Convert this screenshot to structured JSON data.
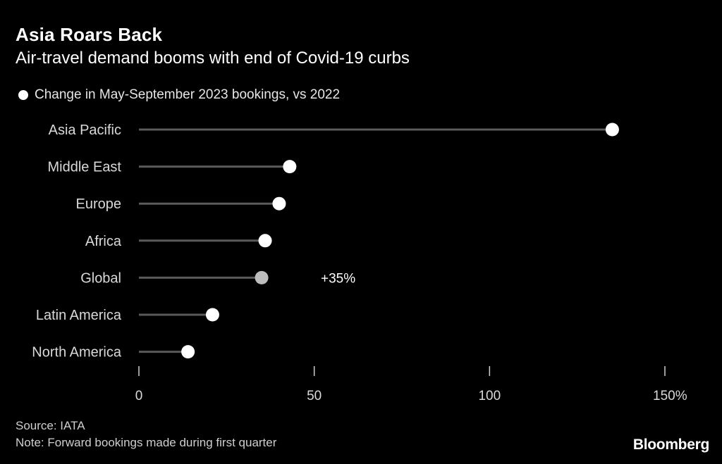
{
  "header": {
    "title": "Asia Roars Back",
    "subtitle": "Air-travel demand booms with end of Covid-19 curbs"
  },
  "legend": {
    "label": "Change in May-September 2023 bookings, vs 2022"
  },
  "footer": {
    "source": "Source: IATA",
    "note": "Note: Forward bookings made during first quarter",
    "brand": "Bloomberg"
  },
  "colors": {
    "background": "#000000",
    "dot": "#ffffff",
    "highlight_dot": "#bdbdbd",
    "stem": "#5a5a5a"
  },
  "chart_data": {
    "type": "lollipop",
    "title": "Asia Roars Back",
    "subtitle": "Air-travel demand booms with end of Covid-19 curbs",
    "series_name": "Change in May-September 2023 bookings, vs 2022",
    "categories": [
      "Asia Pacific",
      "Middle East",
      "Europe",
      "Africa",
      "Global",
      "Latin America",
      "North America"
    ],
    "values": [
      135,
      43,
      40,
      36,
      35,
      21,
      14
    ],
    "highlight": "Global",
    "annotation": {
      "category": "Global",
      "text": "+35%"
    },
    "xlim": [
      0,
      150
    ],
    "xticks": [
      0,
      50,
      100,
      150
    ],
    "xtick_labels": [
      "0",
      "50",
      "100",
      "150%"
    ],
    "xlabel": "",
    "ylabel": "",
    "grid": false
  }
}
